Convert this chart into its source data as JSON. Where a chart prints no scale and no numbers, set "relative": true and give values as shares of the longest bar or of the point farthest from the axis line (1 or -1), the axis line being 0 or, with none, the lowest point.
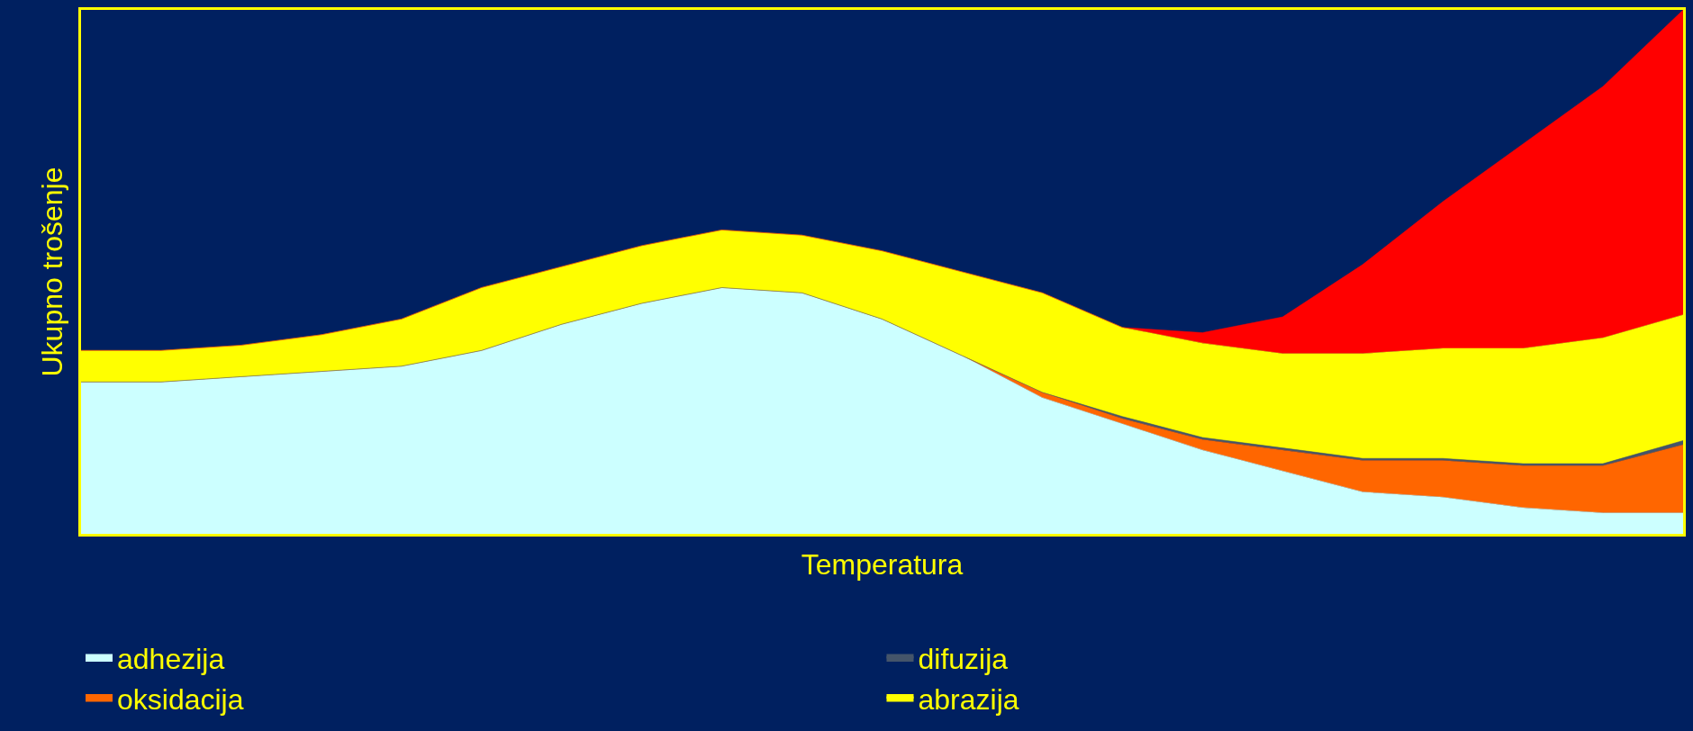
{
  "chart_data": {
    "type": "area",
    "stacked": true,
    "relative": true,
    "xlabel": "Temperatura",
    "ylabel": "Ukupno trošenje",
    "legend": "bottom",
    "categories": [
      null,
      null,
      null,
      null,
      null,
      null,
      null,
      null,
      null,
      null,
      null,
      null,
      null,
      null,
      null,
      null,
      null,
      null,
      null,
      null,
      null
    ],
    "series": [
      {
        "name": "adhezija",
        "color": "#ccffff",
        "values": [
          0.29,
          0.29,
          0.3,
          0.31,
          0.32,
          0.35,
          0.4,
          0.44,
          0.47,
          0.46,
          0.41,
          0.34,
          0.26,
          0.21,
          0.16,
          0.12,
          0.08,
          0.07,
          0.05,
          0.04,
          0.04
        ]
      },
      {
        "name": "oksidacija",
        "color": "#ff6600",
        "values": [
          0,
          0,
          0,
          0,
          0,
          0,
          0,
          0,
          0,
          0,
          0,
          0,
          0.01,
          0.01,
          0.02,
          0.04,
          0.06,
          0.07,
          0.08,
          0.09,
          0.13
        ]
      },
      {
        "name": "difuzija",
        "color": "#44546a",
        "values": [
          0,
          0,
          0,
          0,
          0,
          0,
          0,
          0,
          0,
          0,
          0,
          0,
          0,
          0.004,
          0.004,
          0.004,
          0.004,
          0.004,
          0.004,
          0.004,
          0.008
        ]
      },
      {
        "name": "abrazija",
        "color": "#ffff00",
        "values": [
          0.06,
          0.06,
          0.06,
          0.07,
          0.09,
          0.12,
          0.11,
          0.11,
          0.11,
          0.11,
          0.13,
          0.16,
          0.19,
          0.17,
          0.18,
          0.18,
          0.2,
          0.21,
          0.22,
          0.24,
          0.24
        ]
      },
      {
        "color": "#ff0000",
        "values": [
          0,
          0,
          0,
          0,
          0,
          0,
          0,
          0,
          0,
          0,
          0,
          0,
          0,
          0,
          0.02,
          0.07,
          0.17,
          0.28,
          0.39,
          0.48,
          0.582
        ]
      }
    ]
  }
}
